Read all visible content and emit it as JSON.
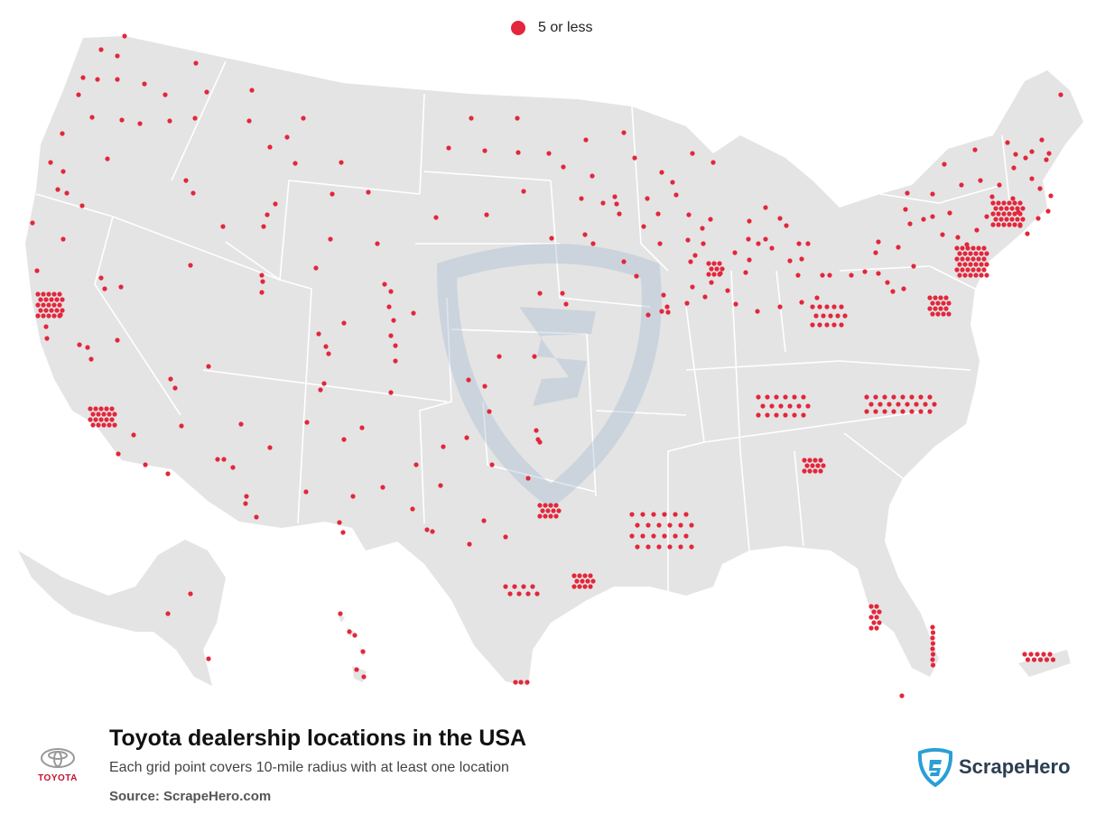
{
  "legend": {
    "label": "5 or less",
    "color": "#e3263b"
  },
  "title": "Toyota dealership locations in the USA",
  "subtitle": "Each grid point covers 10-mile radius with at least one location",
  "source": "Source: ScrapeHero.com",
  "brand": {
    "toyota_word": "TOYOTA",
    "scrapehero_word": "ScrapeHero"
  },
  "colors": {
    "land": "#e4e4e4",
    "border": "#ffffff",
    "dot": "#e3263b",
    "watermark": "#c9d6e3",
    "brand_red": "#c4122f",
    "scrapehero_blue": "#2a9fd6"
  },
  "icons": [
    "toyota-logo-icon",
    "scrapehero-shield-icon",
    "legend-dot-icon"
  ]
}
